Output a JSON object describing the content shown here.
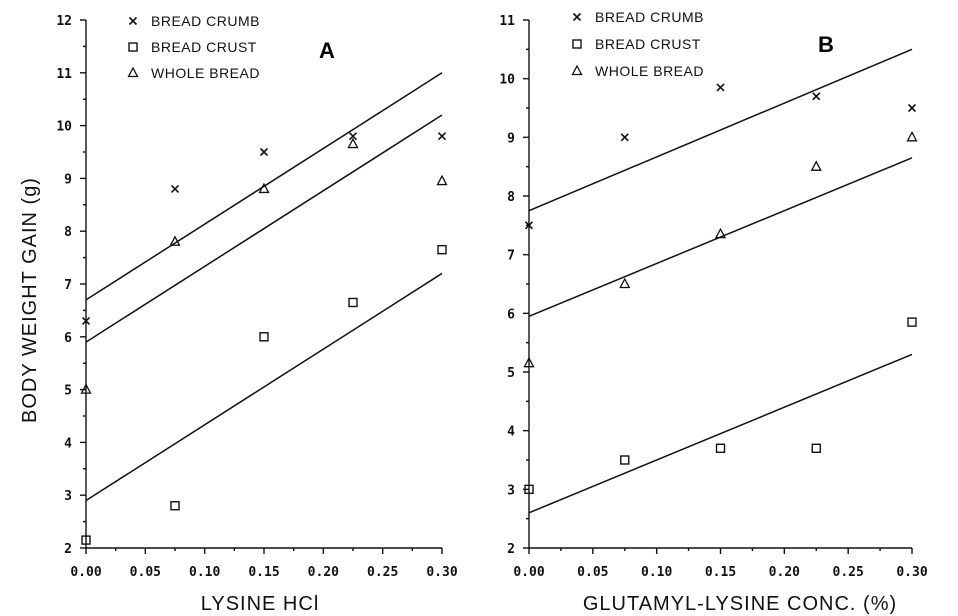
{
  "figure": {
    "ylabel": "BODY WEIGHT GAIN (g)"
  },
  "chart_data": [
    {
      "type": "scatter",
      "panel_label": "A",
      "xlabel": "LYSINE HCl",
      "ylabel": "BODY WEIGHT GAIN (g)",
      "xlim": [
        0,
        0.3
      ],
      "ylim": [
        2,
        12
      ],
      "xticks": [
        "0.00",
        "0.05",
        "0.10",
        "0.15",
        "0.20",
        "0.25",
        "0.30"
      ],
      "yticks": [
        "2",
        "3",
        "4",
        "5",
        "6",
        "7",
        "8",
        "9",
        "10",
        "11",
        "12"
      ],
      "legend_position": "top-center",
      "grid": false,
      "series": [
        {
          "name": "BREAD CRUMB",
          "marker": "x",
          "x": [
            0,
            0.075,
            0.15,
            0.225,
            0.3
          ],
          "y": [
            6.3,
            8.8,
            9.5,
            9.8,
            9.8
          ],
          "fit": [
            6.7,
            11.0
          ]
        },
        {
          "name": "BREAD CRUST",
          "marker": "square",
          "x": [
            0,
            0.075,
            0.15,
            0.225,
            0.3
          ],
          "y": [
            2.15,
            2.8,
            6.0,
            6.65,
            7.65
          ],
          "fit": [
            2.9,
            7.2
          ]
        },
        {
          "name": "WHOLE BREAD",
          "marker": "triangle",
          "x": [
            0,
            0.075,
            0.15,
            0.225,
            0.3
          ],
          "y": [
            5.0,
            7.8,
            8.8,
            9.65,
            8.95
          ],
          "fit": [
            5.9,
            10.2
          ]
        }
      ]
    },
    {
      "type": "scatter",
      "panel_label": "B",
      "xlabel": "GLUTAMYL-LYSINE CONC. (%)",
      "ylabel": "",
      "xlim": [
        0,
        0.3
      ],
      "ylim": [
        2,
        11
      ],
      "xticks": [
        "0.00",
        "0.05",
        "0.10",
        "0.15",
        "0.20",
        "0.25",
        "0.30"
      ],
      "yticks": [
        "2",
        "3",
        "4",
        "5",
        "6",
        "7",
        "8",
        "9",
        "10",
        "11"
      ],
      "legend_position": "top-left",
      "grid": false,
      "series": [
        {
          "name": "BREAD CRUMB",
          "marker": "x",
          "x": [
            0,
            0.075,
            0.15,
            0.225,
            0.3
          ],
          "y": [
            7.5,
            9.0,
            9.85,
            9.7,
            9.5
          ],
          "fit": [
            7.75,
            10.5
          ]
        },
        {
          "name": "BREAD CRUST",
          "marker": "square",
          "x": [
            0,
            0.075,
            0.15,
            0.225,
            0.3
          ],
          "y": [
            3.0,
            3.5,
            3.7,
            3.7,
            5.85
          ],
          "fit": [
            2.6,
            5.3
          ]
        },
        {
          "name": "WHOLE BREAD",
          "marker": "triangle",
          "x": [
            0,
            0.075,
            0.15,
            0.225,
            0.3
          ],
          "y": [
            5.15,
            6.5,
            7.35,
            8.5,
            9.0
          ],
          "fit": [
            5.95,
            8.65
          ]
        }
      ]
    }
  ]
}
